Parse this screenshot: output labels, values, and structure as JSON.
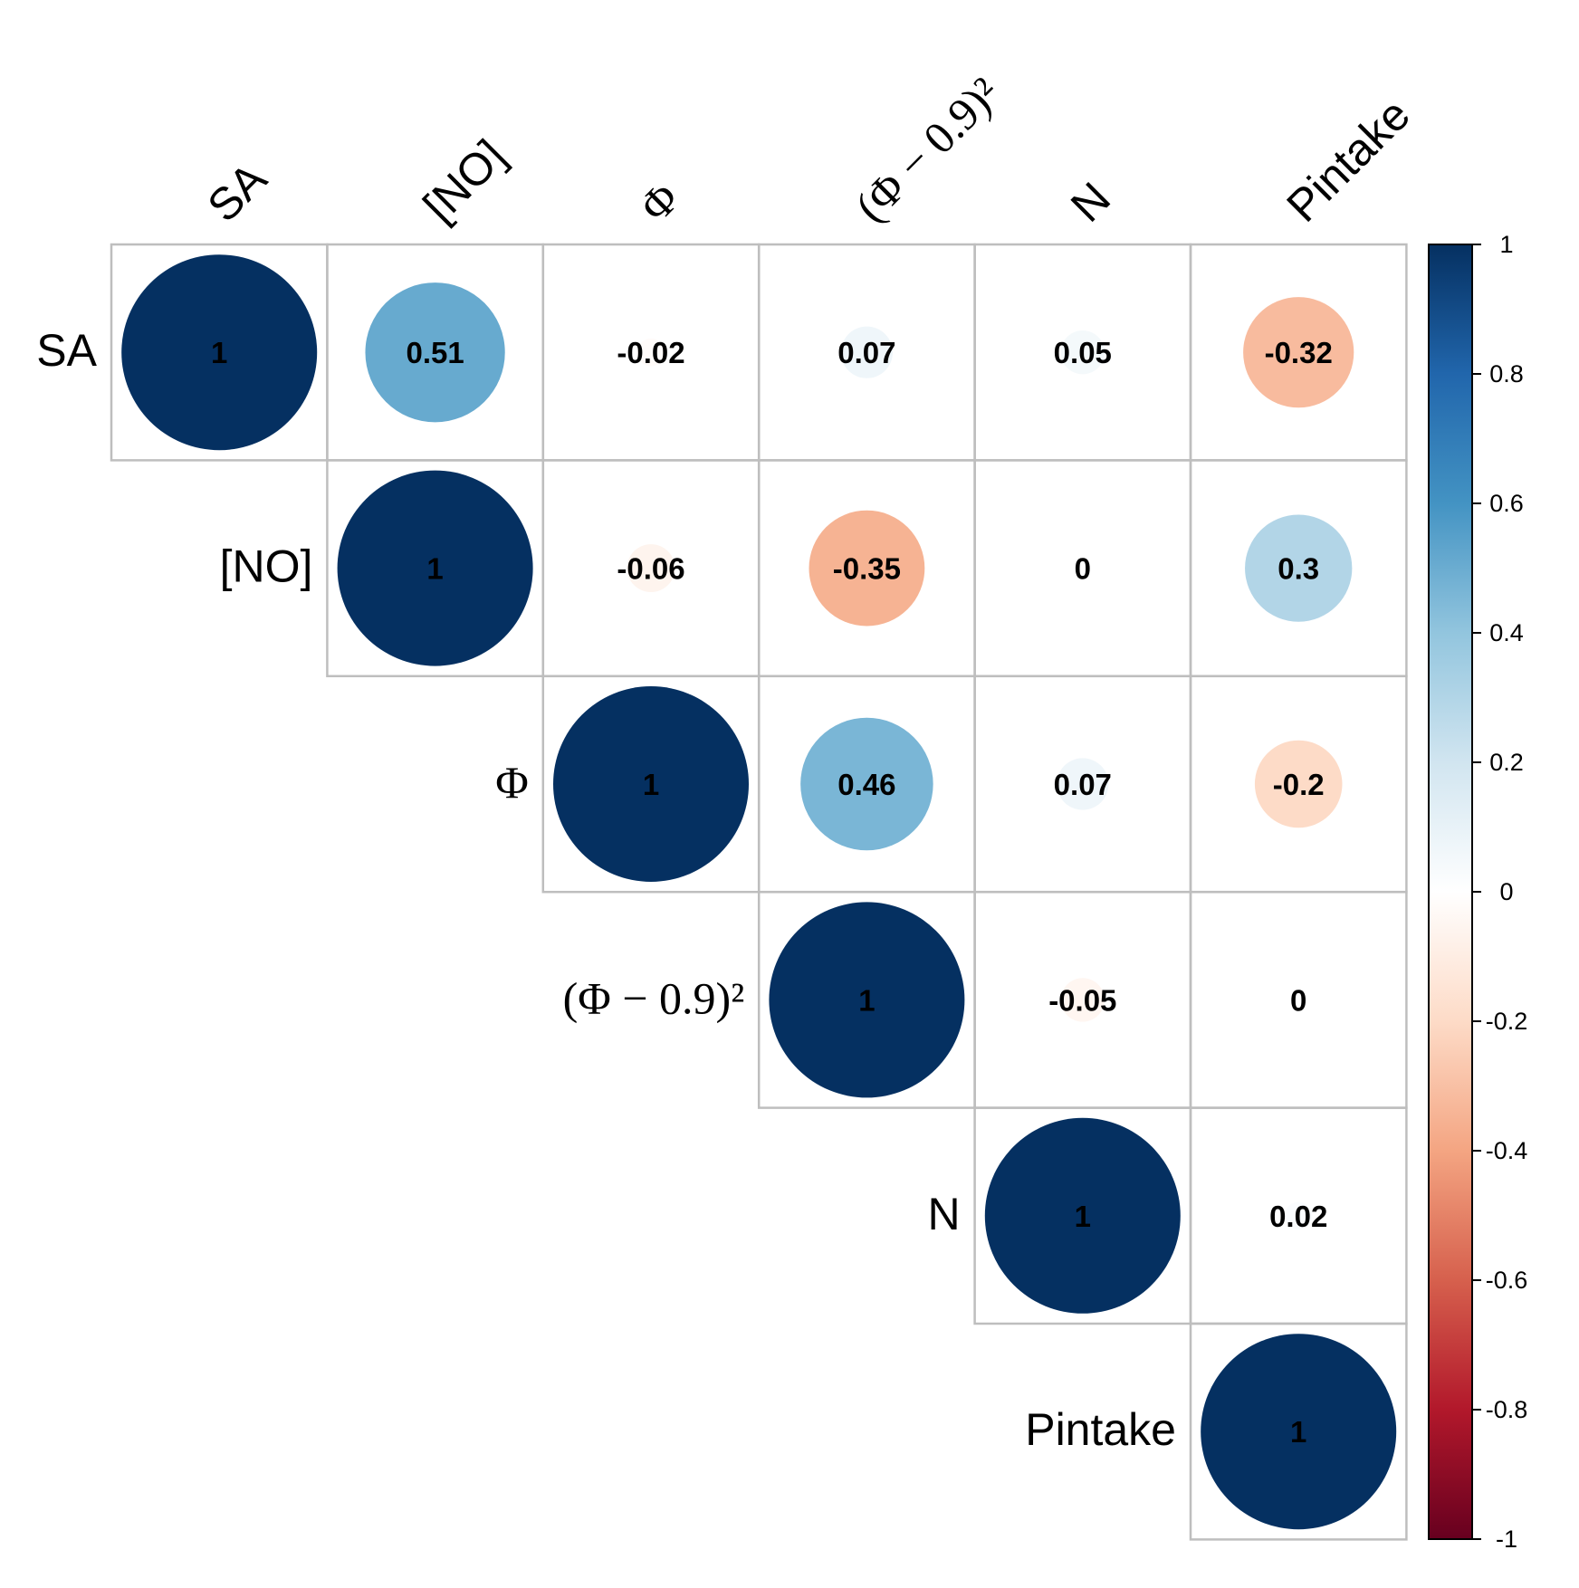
{
  "chart_data": {
    "type": "heatmap",
    "subtype": "correlation-circle-upper",
    "variables": [
      "SA",
      "[NO]",
      "Φ",
      "(Φ − 0.9)²",
      "N",
      "Pintake"
    ],
    "matrix": [
      [
        1,
        0.51,
        -0.02,
        0.07,
        0.05,
        -0.32
      ],
      [
        null,
        1,
        -0.06,
        -0.35,
        0,
        0.3
      ],
      [
        null,
        null,
        1,
        0.46,
        0.07,
        -0.2
      ],
      [
        null,
        null,
        null,
        1,
        -0.05,
        0
      ],
      [
        null,
        null,
        null,
        null,
        1,
        0.02
      ],
      [
        null,
        null,
        null,
        null,
        null,
        1
      ]
    ],
    "value_labels": [
      [
        "1",
        "0.51",
        "-0.02",
        "0.07",
        "0.05",
        "-0.32"
      ],
      [
        null,
        "1",
        "-0.06",
        "-0.35",
        "0",
        "0.3"
      ],
      [
        null,
        null,
        "1",
        "0.46",
        "0.07",
        "-0.2"
      ],
      [
        null,
        null,
        null,
        "1",
        "-0.05",
        "0"
      ],
      [
        null,
        null,
        null,
        null,
        "1",
        "0.02"
      ],
      [
        null,
        null,
        null,
        null,
        null,
        "1"
      ]
    ],
    "colorbar": {
      "range": [
        -1,
        1
      ],
      "ticks": [
        "1",
        "0.8",
        "0.6",
        "0.4",
        "0.2",
        "0",
        "-0.2",
        "-0.4",
        "-0.6",
        "-0.8",
        "-1"
      ],
      "tick_values": [
        1,
        0.8,
        0.6,
        0.4,
        0.2,
        0,
        -0.2,
        -0.4,
        -0.6,
        -0.8,
        -1
      ],
      "palette": [
        "#67001F",
        "#B2182B",
        "#D6604D",
        "#F4A582",
        "#FDDBC7",
        "#FFFFFF",
        "#D1E5F0",
        "#92C5DE",
        "#4393C3",
        "#2166AC",
        "#053061"
      ],
      "legend_position": "right"
    },
    "colors": {
      "grid": "#BEBEBE",
      "label_text": "#000000"
    }
  }
}
